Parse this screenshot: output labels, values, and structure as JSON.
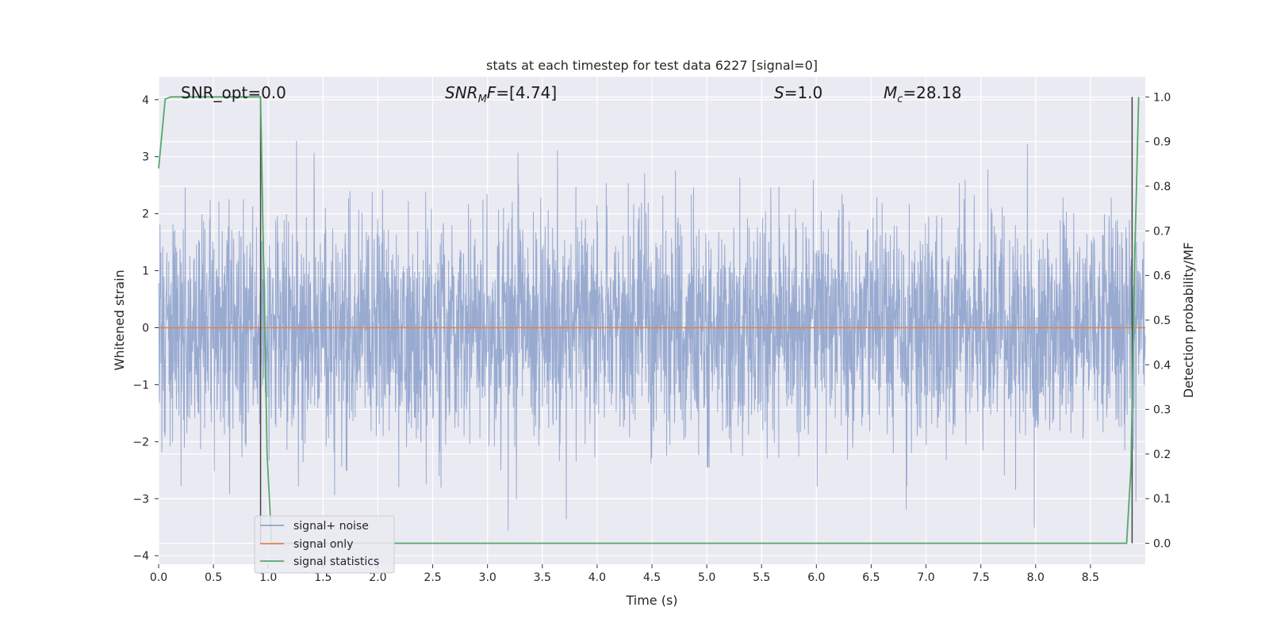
{
  "chart_data": {
    "type": "line",
    "title": "stats at each timestep for test data 6227 [signal=0]",
    "xlabel": "Time (s)",
    "ylabel": "Whitened strain",
    "ylabel_right": "Detection probability/MF",
    "xlim": [
      0.0,
      9.0
    ],
    "ylim": [
      -4.15,
      4.4
    ],
    "ylim_right": [
      -0.047,
      1.045
    ],
    "x_ticks": [
      0.0,
      0.5,
      1.0,
      1.5,
      2.0,
      2.5,
      3.0,
      3.5,
      4.0,
      4.5,
      5.0,
      5.5,
      6.0,
      6.5,
      7.0,
      7.5,
      8.0,
      8.5
    ],
    "x_tick_labels": [
      "0.0",
      "0.5",
      "1.0",
      "1.5",
      "2.0",
      "2.5",
      "3.0",
      "3.5",
      "4.0",
      "4.5",
      "5.0",
      "5.5",
      "6.0",
      "6.5",
      "7.0",
      "7.5",
      "8.0",
      "8.5"
    ],
    "y_ticks": [
      4,
      3,
      2,
      1,
      0,
      -1,
      -2,
      -3,
      -4
    ],
    "y_tick_labels": [
      "4",
      "3",
      "2",
      "1",
      "0",
      "−1",
      "−2",
      "−3",
      "−4"
    ],
    "y_ticks_right": [
      1.0,
      0.9,
      0.8,
      0.7,
      0.6,
      0.5,
      0.4,
      0.3,
      0.2,
      0.1,
      0.0
    ],
    "y_tick_labels_right": [
      "1.0",
      "0.9",
      "0.8",
      "0.7",
      "0.6",
      "0.5",
      "0.4",
      "0.3",
      "0.2",
      "0.1",
      "0.0"
    ],
    "grid": true,
    "legend_position": "lower-left",
    "series": [
      {
        "name": "signal+ noise",
        "axis": "left",
        "color": "#8fa3cc",
        "approx_stats": {
          "mean": 0.0,
          "std": 1.0,
          "max": 4.0,
          "min": -3.8
        }
      },
      {
        "name": "signal only",
        "axis": "left",
        "color": "#dd8452",
        "x": [
          0.0,
          9.0
        ],
        "y": [
          0.0,
          0.0
        ]
      },
      {
        "name": "signal statistics",
        "axis": "right",
        "color": "#55a868",
        "x": [
          0.0,
          0.06,
          0.11,
          0.5,
          0.93,
          0.99,
          1.03,
          1.1,
          4.0,
          8.0,
          8.83,
          8.87,
          8.9,
          8.93,
          8.94
        ],
        "y": [
          0.84,
          0.995,
          1.0,
          1.0,
          1.0,
          0.2,
          0.0,
          0.0,
          0.0,
          0.0,
          0.0,
          0.17,
          0.6,
          0.9,
          1.0
        ]
      }
    ],
    "vlines": [
      {
        "x": 0.93,
        "color": "#444444"
      },
      {
        "x": 8.88,
        "color": "#444444"
      }
    ],
    "annotations": [
      {
        "id": "snr-opt",
        "text": "SNR_opt=0.0"
      },
      {
        "id": "snr-mf",
        "base": "SNR",
        "sub": "M",
        "rest": "F=[4.74]"
      },
      {
        "id": "s",
        "base": "S",
        "rest": "=1.0"
      },
      {
        "id": "mc",
        "base": "M",
        "sub": "c",
        "rest": "=28.18"
      }
    ]
  }
}
